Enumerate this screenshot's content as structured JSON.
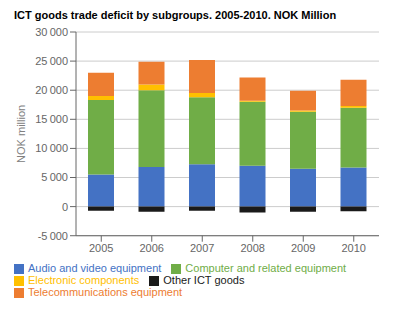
{
  "chart_data": {
    "type": "bar",
    "title": "ICT goods trade deficit by subgroups. 2005-2010. NOK Million",
    "ylabel": "NOK million",
    "categories": [
      "2005",
      "2006",
      "2007",
      "2008",
      "2009",
      "2010"
    ],
    "series": [
      {
        "name": "Audio and video equipment",
        "color": "#4472C4",
        "values": [
          5500,
          6800,
          7300,
          7000,
          6500,
          6700
        ]
      },
      {
        "name": "Computer and related equipment",
        "color": "#70AD47",
        "values": [
          12800,
          13200,
          11500,
          11000,
          9800,
          10300
        ]
      },
      {
        "name": "Electronic components",
        "color": "#FFC000",
        "values": [
          700,
          1000,
          700,
          200,
          200,
          300
        ]
      },
      {
        "name": "Telecommunications equipment",
        "color": "#ED7D31",
        "values": [
          4000,
          3900,
          5700,
          4000,
          3400,
          4500
        ]
      },
      {
        "name": "Other ICT goods",
        "color": "#1A1A1A",
        "values": [
          -700,
          -900,
          -700,
          -1000,
          -900,
          -800
        ]
      }
    ],
    "ylim": [
      -5000,
      30000
    ],
    "yticks": [
      {
        "value": -5000,
        "label": "-5 000"
      },
      0,
      {
        "value": 5000,
        "label": "5 000"
      },
      {
        "value": 10000,
        "label": "10 000"
      },
      {
        "value": 15000,
        "label": "15 000"
      },
      {
        "value": 20000,
        "label": "20 000"
      },
      {
        "value": 25000,
        "label": "25 000"
      },
      {
        "value": 30000,
        "label": "30 000"
      }
    ],
    "stacked": true,
    "grid": true,
    "legend": "bottom"
  }
}
